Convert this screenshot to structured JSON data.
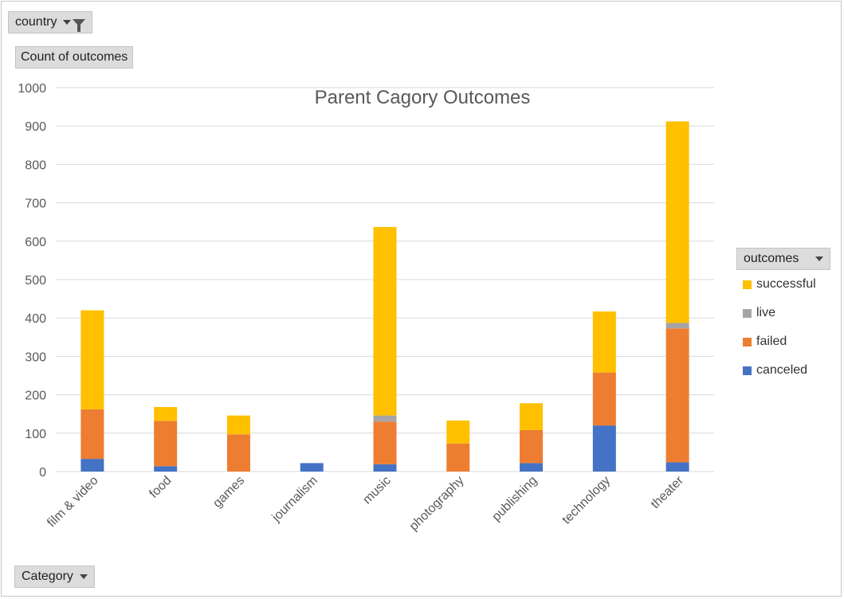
{
  "filters": {
    "country_label": "country",
    "count_label": "Count of outcomes",
    "category_label": "Category"
  },
  "legend": {
    "title": "outcomes",
    "items": [
      {
        "label": "successful",
        "color": "#FFC000"
      },
      {
        "label": "live",
        "color": "#A5A5A5"
      },
      {
        "label": "failed",
        "color": "#ED7D31"
      },
      {
        "label": "canceled",
        "color": "#4472C4"
      }
    ]
  },
  "chart_data": {
    "type": "bar",
    "stacked": true,
    "title": "Parent Cagory Outcomes",
    "xlabel": "",
    "ylabel": "",
    "ylim": [
      0,
      1000
    ],
    "yticks": [
      0,
      100,
      200,
      300,
      400,
      500,
      600,
      700,
      800,
      900,
      1000
    ],
    "grid": true,
    "legend_position": "right",
    "categories": [
      "film & video",
      "food",
      "games",
      "journalism",
      "music",
      "photography",
      "publishing",
      "technology",
      "theater"
    ],
    "series": [
      {
        "name": "canceled",
        "color": "#4472C4",
        "values": [
          33,
          14,
          0,
          22,
          19,
          0,
          22,
          120,
          24
        ]
      },
      {
        "name": "failed",
        "color": "#ED7D31",
        "values": [
          129,
          118,
          97,
          0,
          111,
          73,
          86,
          138,
          349
        ]
      },
      {
        "name": "live",
        "color": "#A5A5A5",
        "values": [
          0,
          0,
          0,
          0,
          16,
          0,
          0,
          0,
          14
        ]
      },
      {
        "name": "successful",
        "color": "#FFC000",
        "values": [
          258,
          36,
          49,
          0,
          491,
          60,
          70,
          159,
          525
        ]
      }
    ]
  }
}
